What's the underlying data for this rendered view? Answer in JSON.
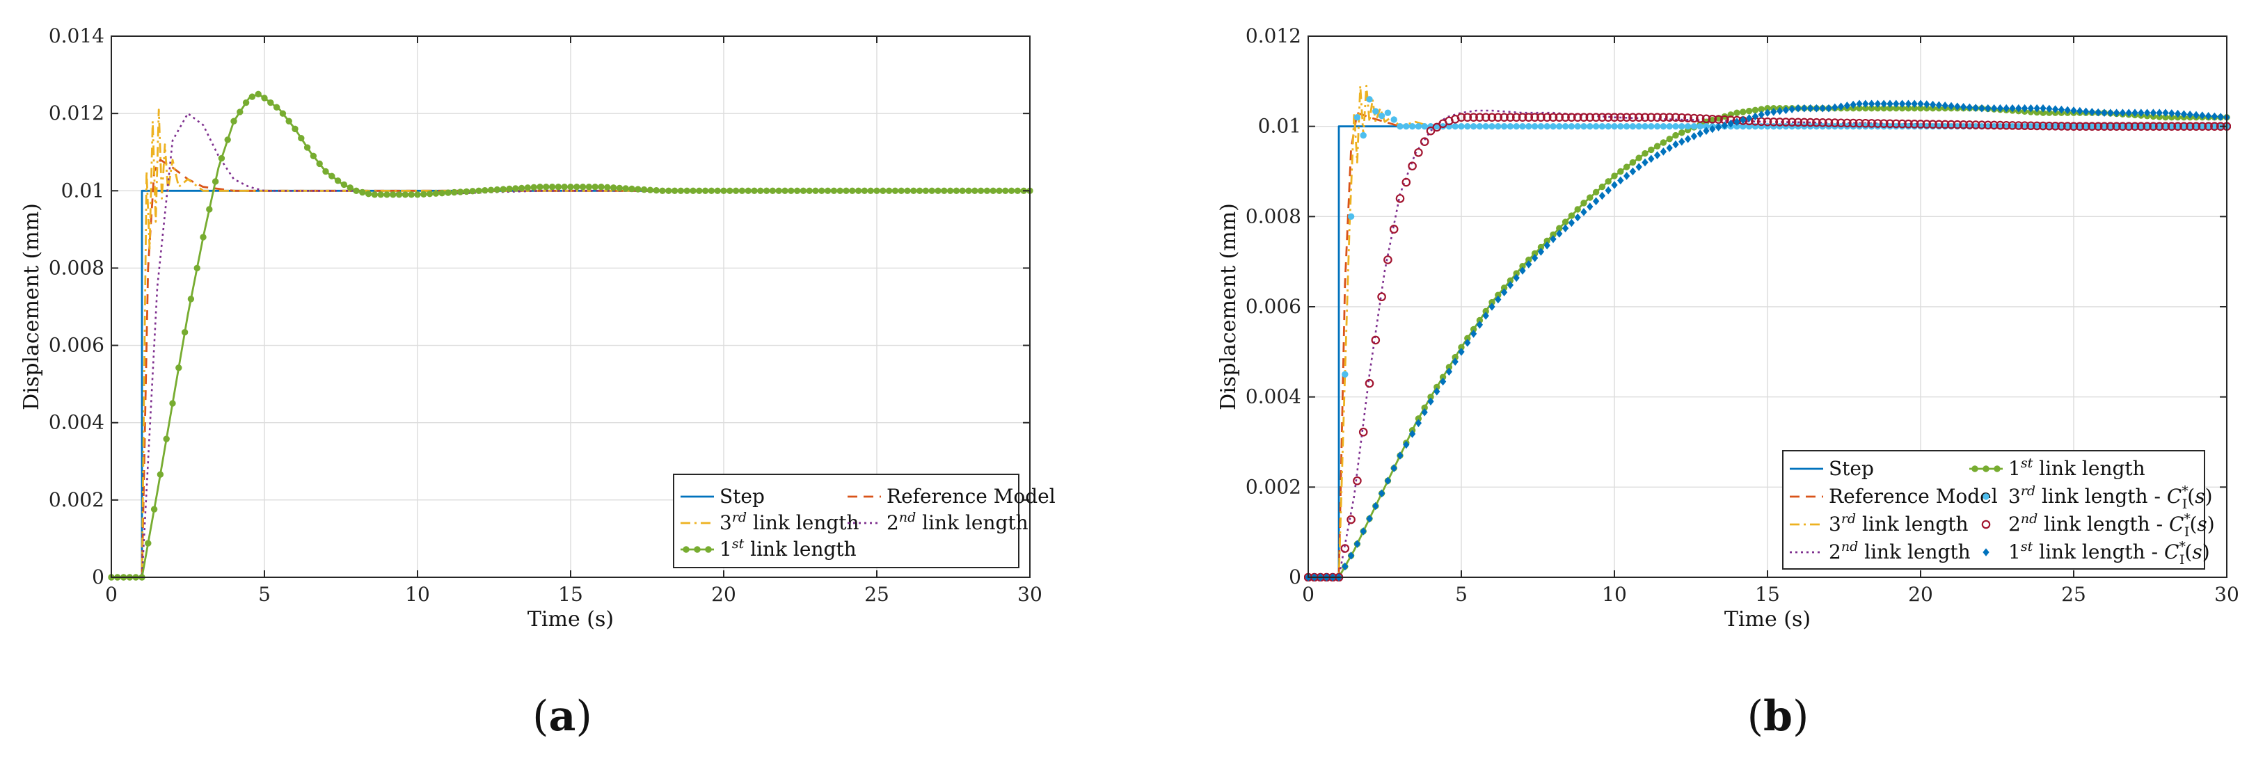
{
  "chart_data": [
    {
      "type": "line",
      "caption": "(a)",
      "xlabel": "Time (s)",
      "ylabel": "Displacement (mm)",
      "xlim": [
        0,
        30
      ],
      "ylim": [
        0,
        0.014
      ],
      "xticks": [
        0,
        5,
        10,
        15,
        20,
        25,
        30
      ],
      "yticks": [
        0,
        0.002,
        0.004,
        0.006,
        0.008,
        0.01,
        0.012,
        0.014
      ],
      "xtick_labels": [
        "0",
        "5",
        "10",
        "15",
        "20",
        "25",
        "30"
      ],
      "ytick_labels": [
        "0",
        "0.002",
        "0.004",
        "0.006",
        "0.008",
        "0.01",
        "0.012",
        "0.014"
      ],
      "grid": true,
      "legend_position": "bottom-right",
      "legend_columns": 2,
      "series": [
        {
          "name": "Step",
          "color": "#0072BD",
          "style": "solid",
          "marker": "none",
          "x": [
            0,
            1,
            1,
            30
          ],
          "y": [
            0,
            0,
            0.01,
            0.01
          ]
        },
        {
          "name": "Reference Model",
          "color": "#D95319",
          "style": "dashed",
          "marker": "none",
          "x": [
            0,
            1,
            1.2,
            1.4,
            1.6,
            2,
            2.5,
            3,
            4,
            6,
            8,
            30
          ],
          "y": [
            0,
            0,
            0.008,
            0.0105,
            0.0108,
            0.0106,
            0.0103,
            0.0101,
            0.01,
            0.01,
            0.01,
            0.01
          ]
        },
        {
          "name": "3rd link length",
          "color": "#EDB120",
          "style": "dashdot",
          "marker": "none",
          "x": [
            0,
            1,
            1.15,
            1.25,
            1.35,
            1.45,
            1.55,
            1.65,
            1.75,
            1.85,
            2,
            2.2,
            2.5,
            3,
            4,
            30
          ],
          "y": [
            0,
            0,
            0.0105,
            0.0085,
            0.0118,
            0.0092,
            0.0121,
            0.0098,
            0.0112,
            0.01,
            0.0108,
            0.0101,
            0.0103,
            0.01,
            0.01,
            0.01
          ]
        },
        {
          "name": "2nd link length",
          "color": "#7E2F8E",
          "style": "dotted",
          "marker": "none",
          "x": [
            0,
            1,
            1.5,
            2,
            2.5,
            3,
            3.5,
            4,
            4.5,
            5,
            6,
            8,
            10,
            14,
            30
          ],
          "y": [
            0,
            0,
            0.0075,
            0.0113,
            0.012,
            0.0117,
            0.0109,
            0.0103,
            0.0101,
            0.01,
            0.01,
            0.01,
            0.0099,
            0.01,
            0.01
          ]
        },
        {
          "name": "1st link length",
          "color": "#77AC30",
          "style": "solid",
          "marker": "dot",
          "x": [
            0,
            1,
            1.5,
            2,
            2.5,
            3,
            3.5,
            4,
            4.5,
            4.8,
            5,
            5.5,
            6,
            6.5,
            7,
            7.5,
            8,
            8.5,
            9,
            9.5,
            10,
            11,
            12,
            13,
            14,
            15,
            16,
            17,
            18,
            20,
            22,
            25,
            30
          ],
          "y": [
            0,
            0,
            0.0022,
            0.0045,
            0.0068,
            0.0088,
            0.0106,
            0.0118,
            0.0124,
            0.0125,
            0.0124,
            0.0121,
            0.0116,
            0.011,
            0.0105,
            0.0102,
            0.01,
            0.0099,
            0.0099,
            0.0099,
            0.0099,
            0.00995,
            0.01,
            0.01005,
            0.0101,
            0.0101,
            0.0101,
            0.01005,
            0.01,
            0.01,
            0.01,
            0.01,
            0.01
          ]
        }
      ]
    },
    {
      "type": "line",
      "caption": "(b)",
      "xlabel": "Time (s)",
      "ylabel": "Displacement (mm)",
      "xlim": [
        0,
        30
      ],
      "ylim": [
        0,
        0.012
      ],
      "xticks": [
        0,
        5,
        10,
        15,
        20,
        25,
        30
      ],
      "yticks": [
        0,
        0.002,
        0.004,
        0.006,
        0.008,
        0.01,
        0.012
      ],
      "xtick_labels": [
        "0",
        "5",
        "10",
        "15",
        "20",
        "25",
        "30"
      ],
      "ytick_labels": [
        "0",
        "0.002",
        "0.004",
        "0.006",
        "0.008",
        "0.01",
        "0.012"
      ],
      "grid": true,
      "legend_position": "bottom-right",
      "legend_columns": 2,
      "series": [
        {
          "name": "Step",
          "color": "#0072BD",
          "style": "solid",
          "marker": "none",
          "x": [
            0,
            1,
            1,
            30
          ],
          "y": [
            0,
            0,
            0.01,
            0.01
          ]
        },
        {
          "name": "Reference Model",
          "color": "#D95319",
          "style": "dashed",
          "marker": "none",
          "x": [
            0,
            1,
            1.2,
            1.4,
            1.6,
            2,
            2.5,
            3,
            4,
            6,
            30
          ],
          "y": [
            0,
            0,
            0.0065,
            0.0095,
            0.0103,
            0.0102,
            0.0101,
            0.01,
            0.01,
            0.01,
            0.01
          ]
        },
        {
          "name": "3rd link length",
          "color": "#EDB120",
          "style": "dashdot",
          "marker": "none",
          "x": [
            0,
            1,
            1.2,
            1.35,
            1.5,
            1.6,
            1.7,
            1.8,
            1.9,
            2,
            2.1,
            2.2,
            2.35,
            2.5,
            2.7,
            3,
            3.5,
            4,
            30
          ],
          "y": [
            0,
            0,
            0.0045,
            0.0078,
            0.0103,
            0.0092,
            0.0109,
            0.0098,
            0.0109,
            0.0101,
            0.0106,
            0.0101,
            0.0104,
            0.0101,
            0.0102,
            0.01,
            0.0101,
            0.01,
            0.01
          ]
        },
        {
          "name": "2nd link length",
          "color": "#7E2F8E",
          "style": "dotted",
          "marker": "none",
          "x": [
            0,
            1,
            1.5,
            2,
            2.5,
            3,
            3.5,
            4,
            4.5,
            5,
            5.5,
            6,
            7,
            8,
            10,
            12,
            15,
            20,
            25,
            30
          ],
          "y": [
            0,
            0,
            0.0018,
            0.0045,
            0.0068,
            0.0085,
            0.0094,
            0.0099,
            0.0102,
            0.0103,
            0.01035,
            0.01035,
            0.0103,
            0.0103,
            0.0102,
            0.01015,
            0.0101,
            0.01005,
            0.01,
            0.01
          ]
        },
        {
          "name": "1st link length",
          "color": "#77AC30",
          "style": "solid",
          "marker": "dot",
          "x": [
            0,
            1,
            1.5,
            2,
            2.5,
            3,
            3.5,
            4,
            5,
            6,
            7,
            8,
            9,
            10,
            11,
            12,
            13,
            14,
            15,
            16,
            17,
            18,
            20,
            22,
            24,
            26,
            28,
            30
          ],
          "y": [
            0,
            0,
            0.0006,
            0.0013,
            0.002,
            0.0027,
            0.0034,
            0.004,
            0.0051,
            0.0061,
            0.0069,
            0.0076,
            0.0083,
            0.0089,
            0.0094,
            0.0098,
            0.0101,
            0.0103,
            0.0104,
            0.0104,
            0.0104,
            0.0104,
            0.0104,
            0.0104,
            0.0103,
            0.0103,
            0.0102,
            0.0102
          ]
        },
        {
          "name": "3rd link length - C*I(s)",
          "color": "#4DBEEE",
          "style": "none",
          "marker": "dot",
          "x": [
            0,
            1,
            1.2,
            1.4,
            1.6,
            1.8,
            2,
            2.3,
            2.6,
            3,
            4,
            30
          ],
          "y": [
            0,
            0,
            0.0045,
            0.008,
            0.0102,
            0.0098,
            0.0106,
            0.0102,
            0.0103,
            0.01,
            0.01,
            0.01
          ]
        },
        {
          "name": "2nd link length - C*I(s)",
          "color": "#A2142F",
          "style": "none",
          "marker": "circle",
          "x": [
            0,
            1,
            1.5,
            2,
            2.5,
            3,
            3.5,
            4,
            4.5,
            5,
            5.5,
            6,
            7,
            8,
            10,
            12,
            15,
            20,
            25,
            30
          ],
          "y": [
            0,
            0,
            0.0016,
            0.0043,
            0.0067,
            0.0084,
            0.0093,
            0.0099,
            0.0101,
            0.0102,
            0.0102,
            0.0102,
            0.0102,
            0.0102,
            0.0102,
            0.0102,
            0.0101,
            0.01005,
            0.01,
            0.01
          ]
        },
        {
          "name": "1st link length - C*I(s)",
          "color": "#0072BD",
          "style": "none",
          "marker": "diamond",
          "x": [
            0,
            1,
            1.5,
            2,
            2.5,
            3,
            3.5,
            4,
            5,
            6,
            7,
            8,
            9,
            10,
            11,
            12,
            13,
            14,
            15,
            16,
            17,
            18,
            20,
            22,
            24,
            26,
            28,
            30
          ],
          "y": [
            0,
            0,
            0.0006,
            0.0013,
            0.002,
            0.0027,
            0.0033,
            0.0039,
            0.005,
            0.006,
            0.0068,
            0.0075,
            0.0081,
            0.0087,
            0.0092,
            0.0096,
            0.0099,
            0.0101,
            0.0103,
            0.0104,
            0.0104,
            0.0105,
            0.0105,
            0.0104,
            0.0104,
            0.0103,
            0.0103,
            0.0102
          ]
        }
      ]
    }
  ]
}
